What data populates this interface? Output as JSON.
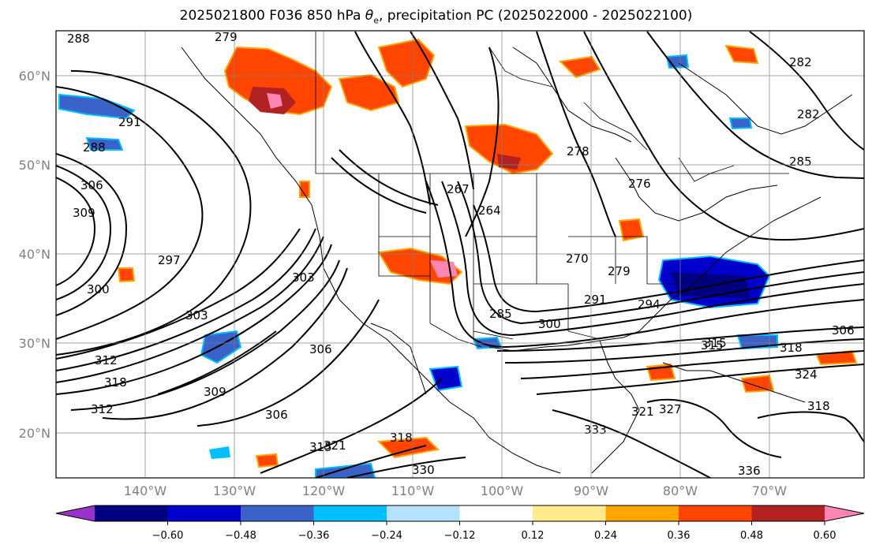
{
  "title": {
    "prefix": "2025021800 F036 850 hPa ",
    "symbol": "θ",
    "subscript": "e",
    "suffix": ", precipitation PC (2025022000 - 2025022100)"
  },
  "axes": {
    "lat_labels": [
      "60°N",
      "50°N",
      "40°N",
      "30°N",
      "20°N"
    ],
    "lon_labels": [
      "140°W",
      "130°W",
      "120°W",
      "110°W",
      "100°W",
      "90°W",
      "80°W",
      "70°W"
    ]
  },
  "colorbar": {
    "ticks": [
      "−0.60",
      "−0.48",
      "−0.36",
      "−0.24",
      "−0.12",
      "0.12",
      "0.24",
      "0.36",
      "0.48",
      "0.60"
    ],
    "colors": [
      "#9933cc",
      "#000080",
      "#0000cd",
      "#3a62c9",
      "#00bfff",
      "#b3e1ff",
      "#ffffff",
      "#ffeb8c",
      "#ffa500",
      "#ff4500",
      "#b22222",
      "#ff85b3"
    ],
    "extend": "both"
  },
  "contour_labels": [
    "288",
    "279",
    "291",
    "288",
    "306",
    "309",
    "297",
    "300",
    "303",
    "312",
    "318",
    "312",
    "309",
    "306",
    "303",
    "306",
    "315",
    "321",
    "318",
    "330",
    "267",
    "264",
    "278",
    "276",
    "270",
    "279",
    "285",
    "291",
    "294",
    "300",
    "306",
    "315",
    "318",
    "324",
    "282",
    "285",
    "333",
    "321",
    "327",
    "336",
    "318",
    "315",
    "282"
  ]
}
